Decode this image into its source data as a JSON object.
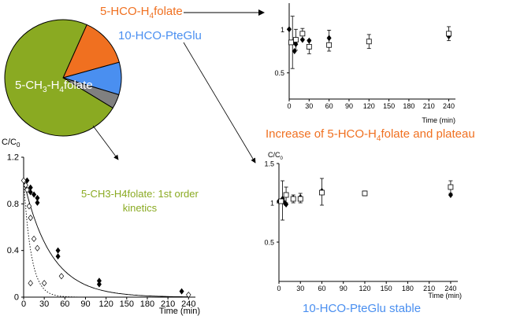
{
  "colors": {
    "folate5hco": "#f07020",
    "pteglu10hco": "#4a8ff0",
    "folate5ch3": "#8aaa22",
    "other": "#808080",
    "axis": "#000000"
  },
  "labels": {
    "pie_5hco": [
      "5-HCO-H",
      "4",
      "folate"
    ],
    "pie_10hco": "10-HCO-PteGlu",
    "pie_5ch3": [
      "5-CH",
      "3",
      "-H",
      "4",
      "folate"
    ],
    "annotation_kinetics": [
      "5-CH3-H4folate: 1st order",
      "kinetics"
    ],
    "caption_plateau": [
      "Increase of 5-HCO-H",
      "4",
      "folate and plateau"
    ],
    "caption_stable": "10-HCO-PteGlu stable"
  },
  "chart_data": [
    {
      "type": "pie",
      "slices": [
        {
          "label": "5-HCO-H4folate",
          "value": 14,
          "color": "#f07020"
        },
        {
          "label": "10-HCO-PteGlu",
          "value": 9,
          "color": "#4a8ff0"
        },
        {
          "label": "other",
          "value": 4,
          "color": "#808080"
        },
        {
          "label": "5-CH3-H4folate",
          "value": 73,
          "color": "#8aaa22"
        }
      ]
    },
    {
      "type": "scatter",
      "ylabel": [
        "C/C",
        "0"
      ],
      "xlabel": "Time (min)",
      "xticks": [
        0,
        30,
        60,
        90,
        120,
        150,
        180,
        210,
        240
      ],
      "yticks": [
        0,
        0.4,
        0.8,
        1.2
      ],
      "ytick_labels": [
        "0",
        "0.4",
        "0.8",
        "1.2"
      ],
      "xlim": [
        0,
        250
      ],
      "ylim": [
        0,
        1.2
      ],
      "series": [
        {
          "marker": "filled-diamond",
          "points": [
            [
              5,
              1.0
            ],
            [
              10,
              0.94
            ],
            [
              10,
              0.9
            ],
            [
              15,
              0.88
            ],
            [
              20,
              0.85
            ],
            [
              20,
              0.81
            ],
            [
              50,
              0.4
            ],
            [
              50,
              0.35
            ],
            [
              110,
              0.14
            ],
            [
              110,
              0.11
            ],
            [
              230,
              0.05
            ]
          ]
        },
        {
          "marker": "open-diamond",
          "points": [
            [
              0,
              1.0
            ],
            [
              3,
              0.96
            ],
            [
              5,
              0.92
            ],
            [
              8,
              0.78
            ],
            [
              10,
              0.68
            ],
            [
              15,
              0.5
            ],
            [
              20,
              0.42
            ],
            [
              10,
              0.12
            ],
            [
              30,
              0.12
            ],
            [
              55,
              0.18
            ],
            [
              240,
              0.02
            ]
          ]
        }
      ],
      "fits": [
        {
          "style": "solid",
          "c0": 1.0,
          "k": 0.025
        },
        {
          "style": "dotted",
          "c0": 1.0,
          "k": 0.09
        }
      ]
    },
    {
      "type": "scatter",
      "xlabel": "Time (min)",
      "xticks": [
        0,
        30,
        60,
        90,
        120,
        150,
        180,
        210,
        240
      ],
      "yticks": [
        0.5,
        1
      ],
      "ytick_labels": [
        "0.5",
        "1"
      ],
      "xlim": [
        0,
        250
      ],
      "ylim": [
        0.2,
        1.3
      ],
      "series": [
        {
          "marker": "filled-diamond",
          "points": [
            [
              0,
              1.0
            ],
            [
              5,
              0.85
            ],
            [
              8,
              0.75
            ],
            [
              10,
              0.83
            ],
            [
              20,
              0.88
            ],
            [
              30,
              0.87
            ],
            [
              60,
              0.9
            ],
            [
              240,
              0.92
            ]
          ]
        },
        {
          "marker": "open-square",
          "points": [
            [
              3,
              0.85
            ],
            [
              10,
              0.88
            ],
            [
              20,
              0.95
            ],
            [
              30,
              0.8
            ],
            [
              60,
              0.82
            ],
            [
              120,
              0.86
            ],
            [
              240,
              0.95
            ]
          ]
        }
      ],
      "errorbars": [
        {
          "x": 5,
          "y": 0.85,
          "e": 0.3
        },
        {
          "x": 10,
          "y": 0.88,
          "e": 0.12
        },
        {
          "x": 20,
          "y": 0.95,
          "e": 0.06
        },
        {
          "x": 30,
          "y": 0.8,
          "e": 0.08
        },
        {
          "x": 60,
          "y": 0.87,
          "e": 0.12
        },
        {
          "x": 120,
          "y": 0.86,
          "e": 0.08
        },
        {
          "x": 240,
          "y": 0.95,
          "e": 0.08
        }
      ]
    },
    {
      "type": "scatter",
      "ylabel": [
        "C/C",
        "0"
      ],
      "xlabel": "Time (min)",
      "xticks": [
        0,
        30,
        60,
        90,
        120,
        150,
        180,
        210,
        240
      ],
      "yticks": [
        0.5,
        1,
        1.5
      ],
      "ytick_labels": [
        "0.5",
        "1",
        "1.5"
      ],
      "xlim": [
        0,
        250
      ],
      "ylim": [
        0,
        1.5
      ],
      "series": [
        {
          "marker": "filled-diamond",
          "points": [
            [
              0,
              1.02
            ],
            [
              5,
              1.05
            ],
            [
              8,
              1.0
            ],
            [
              10,
              0.98
            ],
            [
              20,
              1.06
            ],
            [
              30,
              1.07
            ],
            [
              60,
              1.15
            ],
            [
              240,
              1.1
            ]
          ]
        },
        {
          "marker": "open-square",
          "points": [
            [
              3,
              1.02
            ],
            [
              10,
              1.1
            ],
            [
              20,
              1.05
            ],
            [
              30,
              1.05
            ],
            [
              60,
              1.13
            ],
            [
              120,
              1.12
            ],
            [
              240,
              1.2
            ]
          ]
        }
      ],
      "errorbars": [
        {
          "x": 5,
          "y": 1.03,
          "e": 0.25
        },
        {
          "x": 10,
          "y": 1.1,
          "e": 0.1
        },
        {
          "x": 20,
          "y": 1.05,
          "e": 0.05
        },
        {
          "x": 30,
          "y": 1.06,
          "e": 0.06
        },
        {
          "x": 60,
          "y": 1.14,
          "e": 0.17
        },
        {
          "x": 120,
          "y": 1.12,
          "e": 0.03
        },
        {
          "x": 240,
          "y": 1.2,
          "e": 0.08
        }
      ]
    }
  ]
}
